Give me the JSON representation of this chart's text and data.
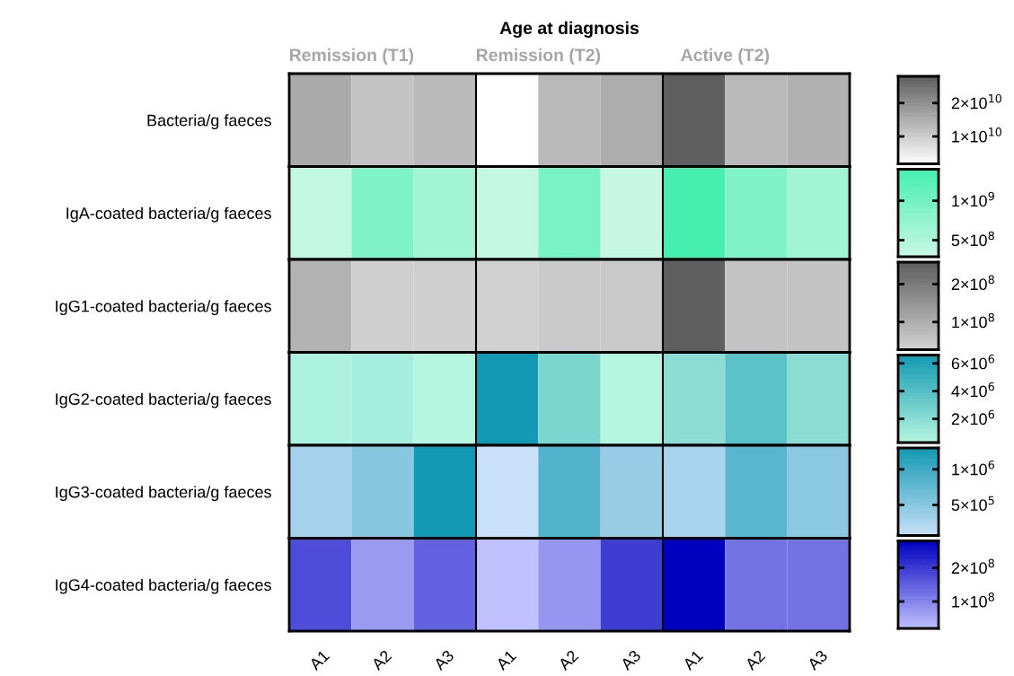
{
  "chart_data": [
    {
      "type": "heatmap",
      "title": "Age at diagnosis",
      "annotations": [
        "Remission (T1)",
        "Remission (T2)",
        "Active (T2)"
      ],
      "categories": [
        null,
        null,
        null,
        null,
        null,
        null,
        null,
        null,
        null
      ],
      "y_categories": [
        "Bacteria/g faeces"
      ],
      "colors": [
        "#ffffff",
        "#5f5f5f"
      ],
      "cells": [
        [
          15700000000,
          11600000000,
          13100000000,
          1800000000,
          13300000000,
          15200000000,
          28000000000,
          13300000000,
          14600000000
        ]
      ],
      "clim": [
        1800000000,
        28000000000
      ],
      "cticks": [
        {
          "value": 10000000000,
          "label": "1×10$^{10}$"
        },
        {
          "value": 20000000000,
          "label": "2×10$^{10}$"
        }
      ]
    },
    {
      "type": "heatmap",
      "categories": [
        null,
        null,
        null,
        null,
        null,
        null,
        null,
        null,
        null
      ],
      "y_categories": [
        "IgA-coated bacteria/g faeces"
      ],
      "colors": [
        "#c8f7e6",
        "#46efb0"
      ],
      "cells": [
        [
          350000000,
          900000000,
          620000000,
          320000000,
          960000000,
          310000000,
          1400000000,
          900000000,
          620000000
        ]
      ],
      "clim": [
        290000000,
        1400000000
      ],
      "cticks": [
        {
          "value": 500000000,
          "label": "5×10$^{8}$"
        },
        {
          "value": 1000000000,
          "label": "1×10$^{9}$"
        }
      ]
    },
    {
      "type": "heatmap",
      "categories": [
        null,
        null,
        null,
        null,
        null,
        null,
        null,
        null,
        null
      ],
      "y_categories": [
        "IgG1-coated bacteria/g faeces"
      ],
      "colors": [
        "#d2d2d2",
        "#5f5f5f"
      ],
      "cells": [
        [
          89000000,
          34000000,
          34000000,
          32000000,
          45000000,
          45000000,
          258000000,
          57000000,
          57000000
        ]
      ],
      "clim": [
        27000000,
        258000000
      ],
      "cticks": [
        {
          "value": 100000000,
          "label": "1×10$^{8}$"
        },
        {
          "value": 200000000,
          "label": "2×10$^{8}$"
        }
      ]
    },
    {
      "type": "heatmap",
      "categories": [
        null,
        null,
        null,
        null,
        null,
        null,
        null,
        null,
        null
      ],
      "y_categories": [
        "IgG2-coated bacteria/g faeces"
      ],
      "colors": [
        "#b5f6e0",
        "#1399b3"
      ],
      "cells": [
        [
          610000,
          920000,
          300000,
          6600000,
          2500000,
          290000,
          1900000,
          3800000,
          1900000
        ]
      ],
      "clim": [
        290000,
        6600000
      ],
      "cticks": [
        {
          "value": 2000000,
          "label": "2×10$^{6}$"
        },
        {
          "value": 4000000,
          "label": "4×10$^{6}$"
        },
        {
          "value": 6000000,
          "label": "6×10$^{6}$"
        }
      ]
    },
    {
      "type": "heatmap",
      "categories": [
        null,
        null,
        null,
        null,
        null,
        null,
        null,
        null,
        null
      ],
      "y_categories": [
        "IgG3-coated bacteria/g faeces"
      ],
      "colors": [
        "#c8e0f8",
        "#1299b3"
      ],
      "cells": [
        [
          320000,
          500000,
          1300000,
          70000,
          870000,
          410000,
          290000,
          810000,
          480000
        ]
      ],
      "clim": [
        70000,
        1300000
      ],
      "cticks": [
        {
          "value": 500000,
          "label": "5×10$^{5}$"
        },
        {
          "value": 1000000,
          "label": "1×10$^{6}$"
        }
      ]
    },
    {
      "type": "heatmap",
      "categories": [
        "A1",
        "A2",
        "A3",
        "A1",
        "A2",
        "A3",
        "A1",
        "A2",
        "A3"
      ],
      "y_categories": [
        "IgG4-coated bacteria/g faeces"
      ],
      "colors": [
        "#c0c0ff",
        "#0000c0"
      ],
      "cells": [
        [
          176000000,
          72000000,
          145000000,
          20000000,
          77000000,
          197000000,
          280000000,
          124000000,
          124000000
        ]
      ],
      "clim": [
        20000000,
        280000000
      ],
      "cticks": [
        {
          "value": 100000000,
          "label": "1×10$^{8}$"
        },
        {
          "value": 200000000,
          "label": "2×10$^{8}$"
        }
      ]
    }
  ]
}
